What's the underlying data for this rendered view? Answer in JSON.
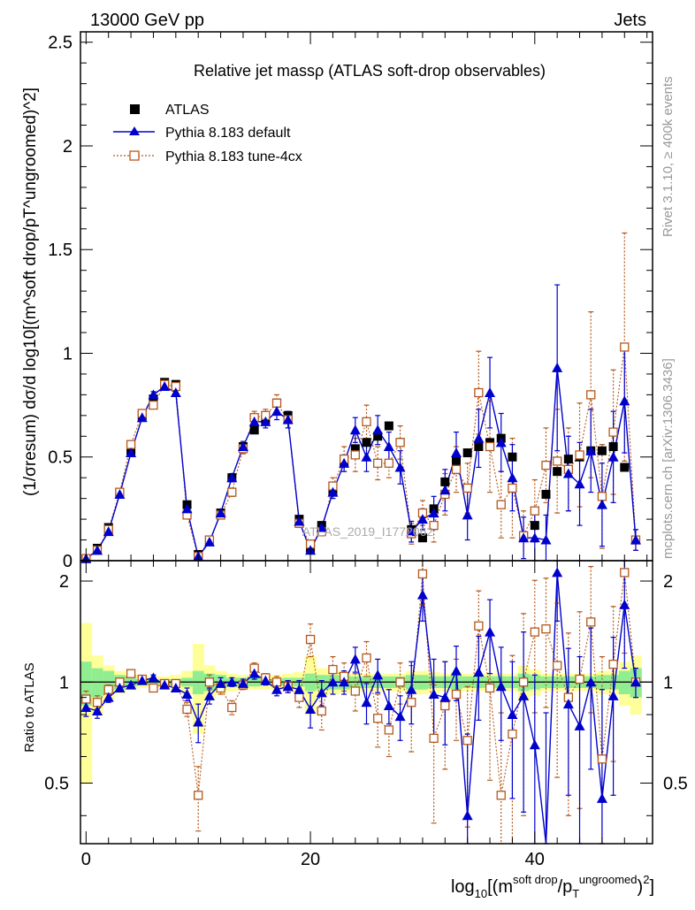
{
  "header": {
    "left": "13000 GeV pp",
    "right": "Jets"
  },
  "side_labels": {
    "rivet": "Rivet 3.1.10, ≥ 400k events",
    "mcplots": "mcplots.cern.ch [arXiv:1306.3436]"
  },
  "chart_data": {
    "type": "scatter",
    "title": "Relative jet massρ (ATLAS soft-drop observables)",
    "watermark": "ATLAS_2019_I1772062",
    "x_axis": {
      "label": "log10[(m^soft drop/pT^ungroomed)^2]",
      "label_base": "log",
      "label_sub": "10",
      "label_open": "[(m",
      "label_sup1": "soft drop",
      "label_mid": "/p",
      "label_sub2": "T",
      "label_sup2": "ungroomed",
      "label_close": ")",
      "label_sup3": "2",
      "label_end": "]",
      "range": [
        -0.5,
        50.5
      ],
      "ticks": [
        0,
        20,
        40
      ],
      "tick_labels": [
        "0",
        "20",
        "40"
      ]
    },
    "y_axis_top": {
      "label": "(1/σresum) dσ/d log10[(m^soft drop/pT^ungroomed)^2]",
      "range": [
        0,
        2.55
      ],
      "ticks": [
        0,
        0.5,
        1,
        1.5,
        2,
        2.5
      ],
      "tick_labels": [
        "0",
        "0.5",
        "1",
        "1.5",
        "2",
        "2.5"
      ]
    },
    "y_axis_ratio": {
      "label": "Ratio to ATLAS",
      "range": [
        0.33,
        2.3
      ],
      "ticks": [
        0.5,
        1,
        2
      ],
      "tick_labels": [
        "0.5",
        "1",
        "2"
      ]
    },
    "legend": {
      "position": "top-left",
      "entries": [
        "ATLAS",
        "Pythia 8.183 default",
        "Pythia 8.183 tune-4cx"
      ]
    },
    "x": [
      0,
      1,
      2,
      3,
      4,
      5,
      6,
      7,
      8,
      9,
      10,
      11,
      12,
      13,
      14,
      15,
      16,
      17,
      18,
      19,
      20,
      21,
      22,
      23,
      24,
      25,
      26,
      27,
      28,
      29,
      30,
      31,
      32,
      33,
      34,
      35,
      36,
      37,
      38,
      39,
      40,
      41,
      42,
      43,
      44,
      45,
      46,
      47,
      48,
      49
    ],
    "series": [
      {
        "name": "ATLAS",
        "values": [
          0.01,
          0.06,
          0.16,
          0.33,
          0.53,
          0.7,
          0.78,
          0.86,
          0.85,
          0.27,
          0.03,
          0.1,
          0.23,
          0.4,
          0.55,
          0.63,
          0.68,
          0.76,
          0.7,
          0.2,
          0.06,
          0.17,
          0.33,
          0.47,
          0.54,
          0.57,
          0.6,
          0.65,
          0.57,
          0.15,
          0.11,
          0.25,
          0.38,
          0.48,
          0.52,
          0.55,
          0.57,
          0.59,
          0.5,
          0.12,
          0.17,
          0.32,
          0.43,
          0.49,
          0.5,
          0.53,
          0.53,
          0.55,
          0.45,
          0.1
        ],
        "band_inner": [
          0.15,
          0.1,
          0.08,
          0.05,
          0.03,
          0.02,
          0.02,
          0.02,
          0.02,
          0.03,
          0.08,
          0.06,
          0.05,
          0.03,
          0.03,
          0.03,
          0.02,
          0.02,
          0.03,
          0.03,
          0.06,
          0.05,
          0.05,
          0.05,
          0.04,
          0.04,
          0.04,
          0.04,
          0.04,
          0.05,
          0.05,
          0.04,
          0.04,
          0.05,
          0.04,
          0.04,
          0.04,
          0.04,
          0.04,
          0.06,
          0.05,
          0.04,
          0.04,
          0.04,
          0.04,
          0.04,
          0.05,
          0.05,
          0.08,
          0.1
        ],
        "band_outer": [
          0.5,
          0.2,
          0.12,
          0.08,
          0.05,
          0.04,
          0.04,
          0.04,
          0.05,
          0.08,
          0.3,
          0.12,
          0.08,
          0.06,
          0.05,
          0.05,
          0.05,
          0.05,
          0.06,
          0.07,
          0.2,
          0.1,
          0.08,
          0.07,
          0.06,
          0.06,
          0.06,
          0.06,
          0.06,
          0.08,
          0.08,
          0.07,
          0.06,
          0.07,
          0.06,
          0.06,
          0.06,
          0.06,
          0.06,
          0.12,
          0.09,
          0.06,
          0.06,
          0.06,
          0.06,
          0.06,
          0.08,
          0.08,
          0.15,
          0.2
        ]
      },
      {
        "name": "Pythia 8.183 default",
        "values": [
          0.01,
          0.05,
          0.14,
          0.32,
          0.52,
          0.69,
          0.8,
          0.84,
          0.81,
          0.25,
          0.02,
          0.09,
          0.23,
          0.4,
          0.55,
          0.67,
          0.67,
          0.72,
          0.68,
          0.19,
          0.05,
          0.16,
          0.33,
          0.47,
          0.63,
          0.5,
          0.63,
          0.55,
          0.45,
          0.14,
          0.2,
          0.23,
          0.34,
          0.52,
          0.22,
          0.59,
          0.81,
          0.57,
          0.4,
          0.11,
          0.11,
          0.1,
          0.93,
          0.42,
          0.37,
          0.53,
          0.27,
          0.5,
          0.77,
          0.1
        ],
        "errors": [
          0.005,
          0.005,
          0.01,
          0.01,
          0.015,
          0.015,
          0.015,
          0.015,
          0.015,
          0.015,
          0.005,
          0.01,
          0.015,
          0.02,
          0.025,
          0.03,
          0.03,
          0.04,
          0.04,
          0.02,
          0.01,
          0.02,
          0.03,
          0.04,
          0.06,
          0.07,
          0.07,
          0.07,
          0.08,
          0.05,
          0.05,
          0.08,
          0.1,
          0.1,
          0.12,
          0.14,
          0.17,
          0.14,
          0.16,
          0.1,
          0.12,
          0.12,
          0.4,
          0.18,
          0.2,
          0.2,
          0.2,
          0.22,
          0.25,
          0.05
        ]
      },
      {
        "name": "Pythia 8.183 tune-4cx",
        "values": [
          0.01,
          0.05,
          0.15,
          0.33,
          0.56,
          0.71,
          0.75,
          0.85,
          0.84,
          0.22,
          0.02,
          0.1,
          0.22,
          0.33,
          0.54,
          0.69,
          0.7,
          0.76,
          0.68,
          0.18,
          0.08,
          0.14,
          0.36,
          0.49,
          0.51,
          0.67,
          0.47,
          0.47,
          0.57,
          0.13,
          0.23,
          0.17,
          0.32,
          0.44,
          0.35,
          0.81,
          0.55,
          0.27,
          0.35,
          0.12,
          0.24,
          0.46,
          0.48,
          0.44,
          0.51,
          0.8,
          0.31,
          0.62,
          1.03,
          0.1
        ],
        "errors": [
          0.005,
          0.005,
          0.01,
          0.01,
          0.015,
          0.015,
          0.015,
          0.015,
          0.015,
          0.015,
          0.005,
          0.01,
          0.015,
          0.02,
          0.025,
          0.03,
          0.03,
          0.04,
          0.04,
          0.02,
          0.01,
          0.02,
          0.04,
          0.06,
          0.08,
          0.08,
          0.08,
          0.07,
          0.08,
          0.05,
          0.06,
          0.08,
          0.1,
          0.11,
          0.12,
          0.2,
          0.22,
          0.16,
          0.24,
          0.12,
          0.15,
          0.18,
          0.25,
          0.2,
          0.25,
          0.4,
          0.25,
          0.3,
          0.55,
          0.05
        ]
      }
    ],
    "ratio_series": [
      {
        "name": "Pythia 8.183 default",
        "values": [
          0.84,
          0.82,
          0.9,
          0.96,
          0.98,
          1.01,
          1.03,
          0.98,
          0.96,
          0.92,
          0.76,
          0.91,
          0.99,
          1.0,
          0.99,
          1.06,
          1.01,
          0.95,
          0.97,
          0.95,
          0.83,
          0.93,
          1.0,
          1.0,
          1.17,
          0.87,
          1.05,
          0.85,
          0.79,
          0.95,
          1.82,
          0.92,
          0.9,
          1.08,
          0.4,
          1.07,
          1.41,
          0.97,
          0.8,
          0.91,
          0.65,
          0.31,
          2.12,
          0.86,
          0.74,
          1.0,
          0.45,
          0.91,
          1.7,
          1.0
        ],
        "errors": [
          0.05,
          0.04,
          0.03,
          0.02,
          0.02,
          0.02,
          0.02,
          0.02,
          0.02,
          0.04,
          0.1,
          0.05,
          0.04,
          0.03,
          0.03,
          0.04,
          0.03,
          0.04,
          0.04,
          0.06,
          0.1,
          0.08,
          0.08,
          0.08,
          0.1,
          0.12,
          0.12,
          0.1,
          0.12,
          0.2,
          0.3,
          0.25,
          0.25,
          0.2,
          0.3,
          0.3,
          0.35,
          0.3,
          0.35,
          0.5,
          0.4,
          0.5,
          0.6,
          0.4,
          0.45,
          0.45,
          0.5,
          0.45,
          0.6,
          0.1
        ]
      },
      {
        "name": "Pythia 8.183 tune-4cx",
        "values": [
          0.89,
          0.87,
          0.95,
          1.0,
          1.06,
          1.02,
          0.96,
          0.99,
          0.99,
          0.83,
          0.46,
          1.0,
          0.96,
          0.84,
          0.98,
          1.1,
          1.03,
          1.0,
          0.97,
          0.9,
          1.34,
          0.82,
          1.09,
          1.04,
          0.94,
          1.18,
          0.78,
          0.72,
          1.0,
          0.87,
          2.1,
          0.68,
          0.85,
          0.92,
          0.67,
          1.47,
          0.96,
          0.46,
          0.7,
          1.0,
          1.41,
          1.44,
          1.12,
          0.9,
          1.02,
          1.51,
          0.59,
          1.13,
          2.12,
          1.0
        ],
        "errors": [
          0.05,
          0.04,
          0.03,
          0.02,
          0.02,
          0.02,
          0.02,
          0.02,
          0.02,
          0.04,
          0.1,
          0.05,
          0.04,
          0.04,
          0.03,
          0.04,
          0.03,
          0.04,
          0.04,
          0.06,
          0.15,
          0.1,
          0.1,
          0.1,
          0.12,
          0.14,
          0.14,
          0.12,
          0.14,
          0.25,
          0.4,
          0.3,
          0.3,
          0.25,
          0.3,
          0.4,
          0.45,
          0.35,
          0.5,
          0.6,
          0.6,
          0.6,
          0.6,
          0.5,
          0.6,
          0.7,
          0.6,
          0.55,
          0.9,
          0.1
        ]
      }
    ]
  }
}
